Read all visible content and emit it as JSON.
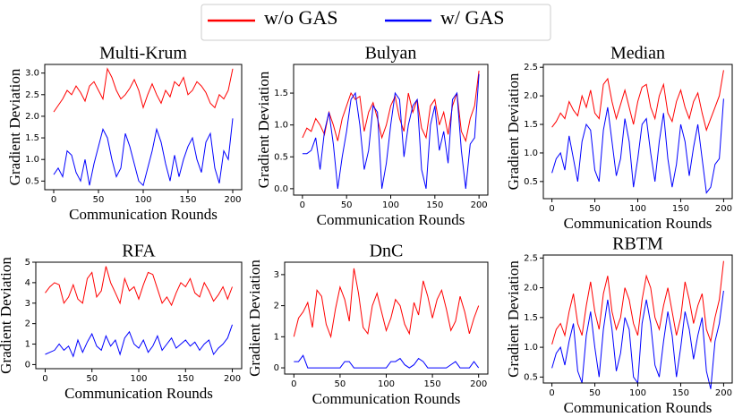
{
  "legend": [
    {
      "name": "w/o GAS",
      "color": "#ff0000"
    },
    {
      "name": "w/ GAS",
      "color": "#0000ff"
    }
  ],
  "chart_data": [
    {
      "type": "line",
      "title": "Multi-Krum",
      "xlabel": "Communication Rounds",
      "ylabel": "Gradient Deviation",
      "x": [
        0,
        5,
        10,
        15,
        20,
        25,
        30,
        35,
        40,
        45,
        50,
        55,
        60,
        65,
        70,
        75,
        80,
        85,
        90,
        95,
        100,
        105,
        110,
        115,
        120,
        125,
        130,
        135,
        140,
        145,
        150,
        155,
        160,
        165,
        170,
        175,
        180,
        185,
        190,
        195,
        200
      ],
      "xlim": [
        -10,
        210
      ],
      "xticks": [
        0,
        50,
        100,
        150,
        200
      ],
      "ylim": [
        0.3,
        3.2
      ],
      "yticks": [
        0.5,
        {
          "value": 1,
          "label": "1.0"
        },
        1.5,
        {
          "value": 2,
          "label": "2.0"
        },
        2.5,
        {
          "value": 3,
          "label": "3.0"
        }
      ],
      "series": [
        {
          "color": "#ff0000",
          "values": [
            2.1,
            2.25,
            2.4,
            2.6,
            2.5,
            2.7,
            2.55,
            2.35,
            2.7,
            2.8,
            2.6,
            2.4,
            3.1,
            2.9,
            2.6,
            2.4,
            2.5,
            2.65,
            2.85,
            2.6,
            2.2,
            2.5,
            2.75,
            2.5,
            2.3,
            2.6,
            2.45,
            2.8,
            2.7,
            2.9,
            2.5,
            2.6,
            2.8,
            2.7,
            2.55,
            2.3,
            2.2,
            2.5,
            2.4,
            2.6,
            3.1
          ]
        },
        {
          "color": "#0000ff",
          "values": [
            0.65,
            0.8,
            0.6,
            1.2,
            1.1,
            0.7,
            0.5,
            1.0,
            0.4,
            0.9,
            1.3,
            1.7,
            1.5,
            1.0,
            0.6,
            0.8,
            1.6,
            1.3,
            0.9,
            0.5,
            0.4,
            0.8,
            1.2,
            1.7,
            1.4,
            0.9,
            0.5,
            1.1,
            0.6,
            1.0,
            1.3,
            1.5,
            1.0,
            0.7,
            1.4,
            1.6,
            0.8,
            0.45,
            1.2,
            1.0,
            1.95
          ]
        }
      ]
    },
    {
      "type": "line",
      "title": "Bulyan",
      "xlabel": "Communication Rounds",
      "ylabel": "Gradient Deviation",
      "x": [
        0,
        5,
        10,
        15,
        20,
        25,
        30,
        35,
        40,
        45,
        50,
        55,
        60,
        65,
        70,
        75,
        80,
        85,
        90,
        95,
        100,
        105,
        110,
        115,
        120,
        125,
        130,
        135,
        140,
        145,
        150,
        155,
        160,
        165,
        170,
        175,
        180,
        185,
        190,
        195,
        200
      ],
      "xlim": [
        -10,
        210
      ],
      "xticks": [
        0,
        50,
        100,
        150,
        200
      ],
      "ylim": [
        -0.1,
        1.95
      ],
      "yticks": [
        {
          "value": 0,
          "label": "0.0"
        },
        0.5,
        {
          "value": 1,
          "label": "1.0"
        },
        1.5
      ],
      "series": [
        {
          "color": "#ff0000",
          "values": [
            0.8,
            0.95,
            0.9,
            1.1,
            1.0,
            0.85,
            1.2,
            1.0,
            0.75,
            1.1,
            1.3,
            1.5,
            1.4,
            1.45,
            0.9,
            1.2,
            1.35,
            1.1,
            0.8,
            1.0,
            1.3,
            1.45,
            1.1,
            0.9,
            1.5,
            1.2,
            1.4,
            0.95,
            0.8,
            1.3,
            1.4,
            1.0,
            1.2,
            0.85,
            1.3,
            1.5,
            0.9,
            0.75,
            1.1,
            1.3,
            1.85
          ]
        },
        {
          "color": "#0000ff",
          "values": [
            0.55,
            0.55,
            0.6,
            0.8,
            0.3,
            0.9,
            1.2,
            0.7,
            0.0,
            0.5,
            0.9,
            1.4,
            1.5,
            1.0,
            0.3,
            0.6,
            1.3,
            1.2,
            0.0,
            0.4,
            1.0,
            1.5,
            1.4,
            0.5,
            1.0,
            1.3,
            1.4,
            0.3,
            0.0,
            1.0,
            1.3,
            0.6,
            0.9,
            0.4,
            1.4,
            1.5,
            0.6,
            0.0,
            0.7,
            0.8,
            1.8
          ]
        }
      ]
    },
    {
      "type": "line",
      "title": "Median",
      "xlabel": "Communication Rounds",
      "ylabel": "Gradient Deviation",
      "x": [
        0,
        5,
        10,
        15,
        20,
        25,
        30,
        35,
        40,
        45,
        50,
        55,
        60,
        65,
        70,
        75,
        80,
        85,
        90,
        95,
        100,
        105,
        110,
        115,
        120,
        125,
        130,
        135,
        140,
        145,
        150,
        155,
        160,
        165,
        170,
        175,
        180,
        185,
        190,
        195,
        200
      ],
      "xlim": [
        -10,
        210
      ],
      "xticks": [
        0,
        50,
        100,
        150,
        200
      ],
      "ylim": [
        0.2,
        2.55
      ],
      "yticks": [
        0.5,
        {
          "value": 1,
          "label": "1.0"
        },
        1.5,
        {
          "value": 2,
          "label": "2.0"
        },
        2.5
      ],
      "series": [
        {
          "color": "#ff0000",
          "values": [
            1.45,
            1.55,
            1.7,
            1.6,
            1.9,
            1.75,
            1.65,
            2.0,
            1.8,
            2.1,
            1.7,
            1.6,
            2.2,
            2.3,
            1.9,
            1.6,
            1.85,
            2.1,
            1.8,
            1.5,
            1.9,
            2.15,
            2.2,
            1.8,
            1.6,
            2.0,
            2.2,
            1.7,
            1.55,
            1.9,
            2.1,
            1.8,
            1.6,
            1.9,
            2.05,
            1.7,
            1.4,
            1.6,
            1.8,
            2.0,
            2.45
          ]
        },
        {
          "color": "#0000ff",
          "values": [
            0.65,
            0.9,
            1.0,
            0.7,
            1.3,
            0.9,
            0.5,
            1.2,
            1.5,
            1.4,
            0.7,
            0.5,
            1.4,
            1.8,
            1.2,
            0.6,
            0.9,
            1.6,
            1.2,
            0.4,
            0.9,
            1.5,
            1.6,
            1.0,
            0.5,
            1.2,
            1.7,
            0.9,
            0.4,
            0.8,
            1.5,
            1.2,
            0.6,
            1.1,
            1.5,
            0.9,
            0.3,
            0.4,
            0.8,
            0.9,
            1.95
          ]
        }
      ]
    },
    {
      "type": "line",
      "title": "RFA",
      "xlabel": "Communication Rounds",
      "ylabel": "Gradient Deviation",
      "x": [
        0,
        5,
        10,
        15,
        20,
        25,
        30,
        35,
        40,
        45,
        50,
        55,
        60,
        65,
        70,
        75,
        80,
        85,
        90,
        95,
        100,
        105,
        110,
        115,
        120,
        125,
        130,
        135,
        140,
        145,
        150,
        155,
        160,
        165,
        170,
        175,
        180,
        185,
        190,
        195,
        200
      ],
      "xlim": [
        -10,
        210
      ],
      "xticks": [
        0,
        50,
        100,
        150,
        200
      ],
      "ylim": [
        -0.2,
        5
      ],
      "yticks": [
        0,
        1,
        2,
        3,
        4,
        5
      ],
      "series": [
        {
          "color": "#ff0000",
          "values": [
            3.5,
            3.8,
            4.0,
            3.9,
            3.0,
            3.3,
            3.9,
            3.2,
            3.0,
            4.2,
            4.5,
            3.3,
            3.6,
            4.8,
            4.0,
            3.5,
            3.0,
            4.2,
            3.6,
            3.8,
            3.2,
            3.9,
            4.5,
            4.4,
            3.7,
            3.0,
            3.3,
            2.9,
            3.5,
            4.0,
            3.8,
            4.2,
            3.5,
            3.3,
            4.0,
            3.6,
            3.1,
            3.4,
            3.8,
            3.2,
            3.8
          ]
        },
        {
          "color": "#0000ff",
          "values": [
            0.5,
            0.6,
            0.7,
            1.0,
            0.7,
            0.9,
            0.4,
            1.2,
            0.6,
            1.1,
            1.5,
            0.9,
            0.7,
            1.4,
            0.9,
            1.2,
            0.5,
            1.3,
            1.6,
            1.0,
            0.8,
            1.2,
            0.6,
            0.9,
            1.4,
            0.7,
            1.0,
            1.3,
            0.8,
            1.0,
            1.2,
            0.9,
            1.1,
            0.7,
            1.0,
            1.2,
            0.5,
            0.8,
            1.0,
            1.3,
            1.95
          ]
        }
      ]
    },
    {
      "type": "line",
      "title": "DnC",
      "xlabel": "Communication Rounds",
      "ylabel": "Gradient Deviation",
      "x": [
        0,
        5,
        10,
        15,
        20,
        25,
        30,
        35,
        40,
        45,
        50,
        55,
        60,
        65,
        70,
        75,
        80,
        85,
        90,
        95,
        100,
        105,
        110,
        115,
        120,
        125,
        130,
        135,
        140,
        145,
        150,
        155,
        160,
        165,
        170,
        175,
        180,
        185,
        190,
        195,
        200
      ],
      "xlim": [
        -10,
        210
      ],
      "xticks": [
        0,
        50,
        100,
        150,
        200
      ],
      "ylim": [
        -0.2,
        3.4
      ],
      "yticks": [
        0,
        1,
        2,
        3
      ],
      "series": [
        {
          "color": "#ff0000",
          "values": [
            1.0,
            1.6,
            1.8,
            2.1,
            1.3,
            2.5,
            2.3,
            1.4,
            1.0,
            1.9,
            2.6,
            2.2,
            1.5,
            3.2,
            2.4,
            1.3,
            1.1,
            2.0,
            2.4,
            1.8,
            1.2,
            1.6,
            2.2,
            2.0,
            1.4,
            1.1,
            2.1,
            1.7,
            2.8,
            2.3,
            1.6,
            2.2,
            2.5,
            1.9,
            1.2,
            1.5,
            2.3,
            1.8,
            1.1,
            1.6,
            2.0
          ]
        },
        {
          "color": "#0000ff",
          "values": [
            0.2,
            0.2,
            0.4,
            0.0,
            0.0,
            0.0,
            0.0,
            0.0,
            0.0,
            0.0,
            0.0,
            0.2,
            0.2,
            0.0,
            0.0,
            0.0,
            0.0,
            0.0,
            0.0,
            0.0,
            0.0,
            0.2,
            0.2,
            0.3,
            0.1,
            0.0,
            0.1,
            0.3,
            0.2,
            0.0,
            0.0,
            0.0,
            0.0,
            0.0,
            0.1,
            0.2,
            0.0,
            0.0,
            0.0,
            0.2,
            0.0
          ]
        }
      ]
    },
    {
      "type": "line",
      "title": "RBTM",
      "xlabel": "Communication Rounds",
      "ylabel": "Gradient Deviation",
      "x": [
        0,
        5,
        10,
        15,
        20,
        25,
        30,
        35,
        40,
        45,
        50,
        55,
        60,
        65,
        70,
        75,
        80,
        85,
        90,
        95,
        100,
        105,
        110,
        115,
        120,
        125,
        130,
        135,
        140,
        145,
        150,
        155,
        160,
        165,
        170,
        175,
        180,
        185,
        190,
        195,
        200
      ],
      "xlim": [
        -10,
        210
      ],
      "xticks": [
        0,
        50,
        100,
        150,
        200
      ],
      "ylim": [
        0.4,
        2.55
      ],
      "yticks": [
        0.5,
        {
          "value": 1,
          "label": "1.0"
        },
        1.5,
        {
          "value": 2,
          "label": "2.0"
        },
        2.5
      ],
      "series": [
        {
          "color": "#ff0000",
          "values": [
            1.05,
            1.3,
            1.4,
            1.2,
            1.6,
            1.9,
            1.4,
            1.2,
            1.7,
            2.1,
            1.6,
            1.3,
            1.9,
            2.2,
            1.6,
            1.3,
            1.5,
            2.0,
            1.8,
            1.4,
            1.2,
            1.8,
            2.2,
            2.0,
            1.5,
            1.3,
            1.7,
            2.0,
            1.6,
            1.2,
            1.5,
            2.1,
            1.8,
            1.4,
            1.7,
            1.9,
            1.3,
            1.1,
            1.5,
            1.8,
            2.45
          ]
        },
        {
          "color": "#0000ff",
          "values": [
            0.65,
            0.9,
            1.0,
            0.7,
            1.1,
            1.4,
            0.6,
            0.4,
            1.2,
            1.6,
            1.0,
            0.5,
            1.3,
            1.8,
            1.3,
            0.6,
            0.9,
            1.5,
            1.3,
            0.5,
            0.4,
            1.4,
            1.8,
            1.4,
            0.7,
            0.5,
            1.1,
            1.6,
            1.2,
            0.5,
            1.0,
            1.6,
            1.3,
            0.8,
            1.2,
            1.5,
            0.6,
            0.3,
            1.1,
            1.4,
            1.95
          ]
        }
      ]
    }
  ]
}
